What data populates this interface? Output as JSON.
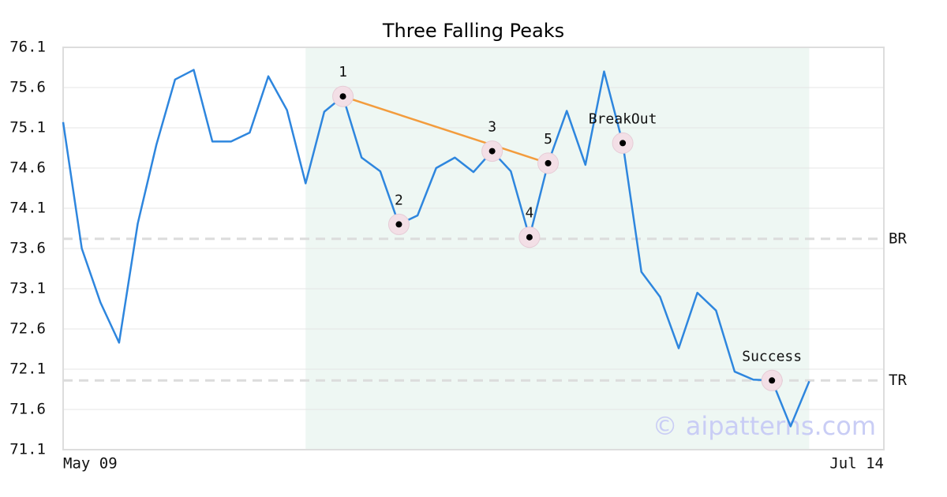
{
  "chart_data": {
    "type": "line",
    "title": "Three Falling Peaks",
    "x": [
      0,
      1,
      2,
      3,
      4,
      5,
      6,
      7,
      8,
      9,
      10,
      11,
      12,
      13,
      14,
      15,
      16,
      17,
      18,
      19,
      20,
      21,
      22,
      23,
      24,
      25,
      26,
      27,
      28,
      29,
      30,
      31,
      32,
      33,
      34,
      35,
      36,
      37,
      38,
      39,
      40
    ],
    "values": [
      75.17,
      73.6,
      72.93,
      72.43,
      73.91,
      74.89,
      75.7,
      75.82,
      74.93,
      74.93,
      75.04,
      75.74,
      75.32,
      74.41,
      75.3,
      75.49,
      74.73,
      74.56,
      73.9,
      74.01,
      74.6,
      74.73,
      74.55,
      74.81,
      74.56,
      73.74,
      74.66,
      75.31,
      74.64,
      75.8,
      74.91,
      73.31,
      73.0,
      72.36,
      73.05,
      72.83,
      72.07,
      71.97,
      71.96,
      71.39,
      71.95
    ],
    "color": "#2e86de",
    "xlim": [
      0,
      44
    ],
    "xticks": [
      {
        "value": 0,
        "label": "May 09"
      },
      {
        "value": 44,
        "label": "Jul 14"
      }
    ],
    "ylim": [
      71.1,
      76.1
    ],
    "yticks": [
      71.1,
      71.6,
      72.1,
      72.6,
      73.1,
      73.6,
      74.1,
      74.6,
      75.1,
      75.6,
      76.1
    ],
    "grid": true,
    "shaded_region": {
      "from": 13,
      "to": 40,
      "color": "#eef7f3"
    },
    "hlines": [
      {
        "name": "BR",
        "value": 73.72
      },
      {
        "name": "TR",
        "value": 71.96
      }
    ],
    "markers": [
      {
        "label": "1",
        "index": 15
      },
      {
        "label": "2",
        "index": 18
      },
      {
        "label": "3",
        "index": 23
      },
      {
        "label": "4",
        "index": 25
      },
      {
        "label": "5",
        "index": 26
      },
      {
        "label": "BreakOut",
        "index": 30
      },
      {
        "label": "Success",
        "index": 38
      }
    ],
    "trendline": {
      "from": 15,
      "to": 26,
      "color": "#f39c3d"
    },
    "watermark": "© aipatterns.com"
  }
}
